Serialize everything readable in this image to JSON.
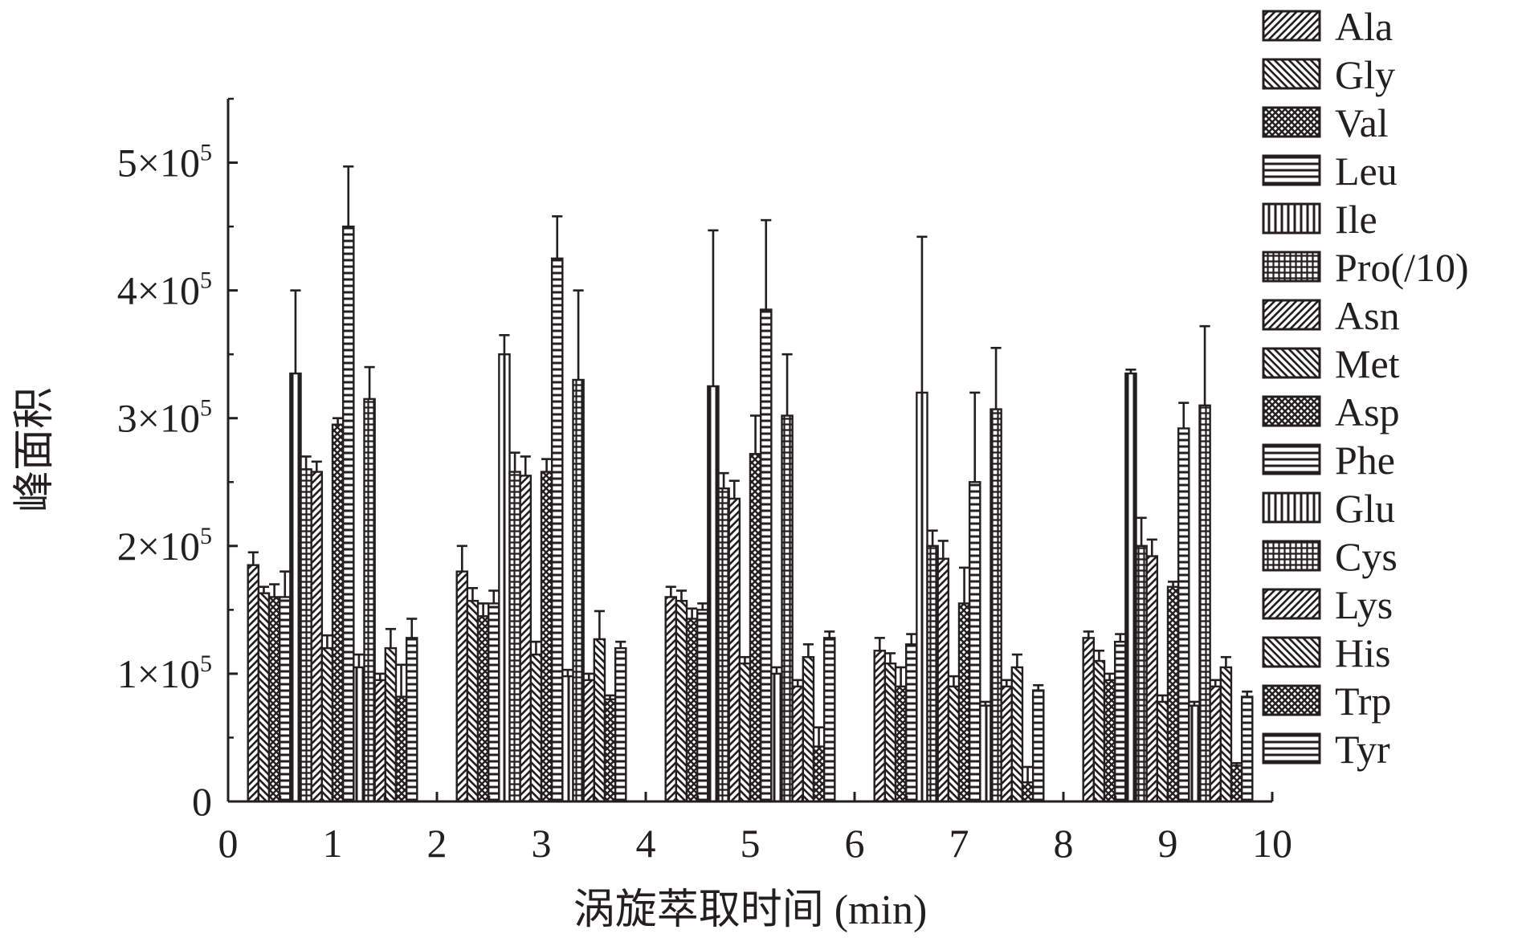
{
  "chart_data": {
    "type": "bar",
    "title": "",
    "xlabel": "涡旋萃取时间 (min)",
    "ylabel": "峰面积",
    "xlim": [
      0,
      10
    ],
    "ylim": [
      0,
      550000
    ],
    "x_ticks": [
      "0",
      "1",
      "2",
      "3",
      "4",
      "5",
      "6",
      "7",
      "8",
      "9",
      "10"
    ],
    "y_ticks": [
      {
        "value": 0,
        "mantissa": "0",
        "exponent": ""
      },
      {
        "value": 100000,
        "mantissa": "1×10",
        "exponent": "5"
      },
      {
        "value": 200000,
        "mantissa": "2×10",
        "exponent": "5"
      },
      {
        "value": 300000,
        "mantissa": "3×10",
        "exponent": "5"
      },
      {
        "value": 400000,
        "mantissa": "4×10",
        "exponent": "5"
      },
      {
        "value": 500000,
        "mantissa": "5×10",
        "exponent": "5"
      }
    ],
    "grid": false,
    "legend_position": "right",
    "categories": [
      "1",
      "3",
      "5",
      "7",
      "9"
    ],
    "series": [
      {
        "name": "Ala",
        "pattern": "diag-fwd",
        "values": [
          185000,
          180000,
          160000,
          118000,
          128000
        ],
        "errors": [
          10000,
          20000,
          8000,
          10000,
          5000
        ]
      },
      {
        "name": "Gly",
        "pattern": "diag-back",
        "values": [
          163000,
          157000,
          157000,
          108000,
          110000
        ],
        "errors": [
          5000,
          10000,
          8000,
          8000,
          8000
        ]
      },
      {
        "name": "Val",
        "pattern": "crosshatch",
        "values": [
          160000,
          145000,
          143000,
          90000,
          95000
        ],
        "errors": [
          10000,
          10000,
          8000,
          15000,
          5000
        ]
      },
      {
        "name": "Leu",
        "pattern": "horizontal",
        "values": [
          160000,
          155000,
          150000,
          123000,
          125000
        ],
        "errors": [
          20000,
          10000,
          5000,
          8000,
          6000
        ]
      },
      {
        "name": "Ile",
        "pattern": "vertical",
        "values": [
          335000,
          350000,
          325000,
          320000,
          335000
        ],
        "errors": [
          65000,
          15000,
          122000,
          122000,
          3000
        ]
      },
      {
        "name": "Pro(/10)",
        "pattern": "grid",
        "values": [
          260000,
          258000,
          245000,
          200000,
          200000
        ],
        "errors": [
          10000,
          15000,
          12000,
          12000,
          22000
        ]
      },
      {
        "name": "Asn",
        "pattern": "diag-fwd",
        "values": [
          258000,
          255000,
          237000,
          190000,
          192000
        ],
        "errors": [
          8000,
          15000,
          14000,
          14000,
          13000
        ]
      },
      {
        "name": "Met",
        "pattern": "diag-back",
        "values": [
          120000,
          115000,
          108000,
          90000,
          78000
        ],
        "errors": [
          10000,
          10000,
          5000,
          8000,
          5000
        ]
      },
      {
        "name": "Asp",
        "pattern": "crosshatch",
        "values": [
          295000,
          258000,
          272000,
          155000,
          168000
        ],
        "errors": [
          5000,
          10000,
          30000,
          28000,
          4000
        ]
      },
      {
        "name": "Phe",
        "pattern": "horizontal",
        "values": [
          450000,
          425000,
          385000,
          250000,
          292000
        ],
        "errors": [
          47000,
          33000,
          70000,
          70000,
          20000
        ]
      },
      {
        "name": "Glu",
        "pattern": "vertical",
        "values": [
          105000,
          98000,
          100000,
          75000,
          75000
        ],
        "errors": [
          10000,
          5000,
          5000,
          3000,
          3000
        ]
      },
      {
        "name": "Cys",
        "pattern": "grid",
        "values": [
          315000,
          330000,
          302000,
          307000,
          310000
        ],
        "errors": [
          25000,
          70000,
          48000,
          48000,
          62000
        ]
      },
      {
        "name": "Lys",
        "pattern": "diag-fwd",
        "values": [
          95000,
          95000,
          90000,
          90000,
          90000
        ],
        "errors": [
          5000,
          5000,
          5000,
          5000,
          5000
        ]
      },
      {
        "name": "His",
        "pattern": "diag-back",
        "values": [
          120000,
          127000,
          113000,
          105000,
          105000
        ],
        "errors": [
          15000,
          22000,
          10000,
          10000,
          8000
        ]
      },
      {
        "name": "Trp",
        "pattern": "crosshatch",
        "values": [
          82000,
          80000,
          43000,
          15000,
          28000
        ],
        "errors": [
          25000,
          3000,
          15000,
          12000,
          2000
        ]
      },
      {
        "name": "Tyr",
        "pattern": "horizontal",
        "values": [
          128000,
          120000,
          128000,
          87000,
          82000
        ],
        "errors": [
          15000,
          5000,
          5000,
          4000,
          4000
        ]
      }
    ]
  }
}
